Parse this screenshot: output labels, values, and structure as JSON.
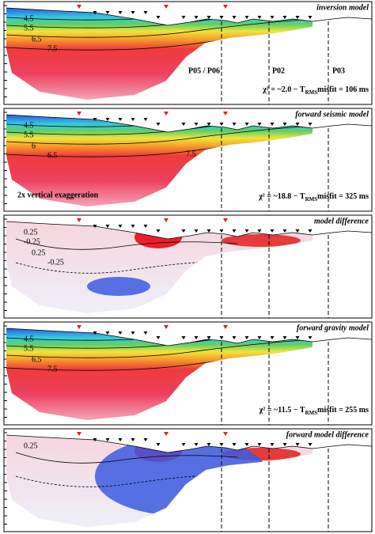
{
  "chart_data": [
    {
      "type": "velocity-model",
      "title": "inversion model",
      "contour_labels": [
        4.5,
        5.5,
        6.5,
        7.5
      ],
      "profile_labels": [
        "P05 / P06",
        "P02",
        "P03"
      ],
      "misfit": {
        "pre": "χ² = ~2.0 − T",
        "sub": "RMS",
        "post": "misfit = 106 ms"
      }
    },
    {
      "type": "velocity-model",
      "title": "forward seismic model",
      "contour_labels": [
        4.5,
        5.5,
        6,
        6.5,
        7.5
      ],
      "note": "2x vertical exaggeration",
      "misfit": {
        "pre": "χ² = ~18.8 − T",
        "sub": "RMS",
        "post": "misfit = 325 ms"
      }
    },
    {
      "type": "difference",
      "title": "model difference",
      "contour_labels": [
        0.25,
        -0.25,
        0.25,
        -0.25
      ]
    },
    {
      "type": "velocity-model",
      "title": "forward gravity model",
      "contour_labels": [
        4.5,
        5.5,
        6.5,
        7.5
      ],
      "misfit": {
        "pre": "χ² = ~11.5 − T",
        "sub": "RMS",
        "post": "misfit = 255 ms"
      }
    },
    {
      "type": "difference",
      "title": "forward model difference",
      "contour_labels": [
        0.25
      ]
    }
  ]
}
